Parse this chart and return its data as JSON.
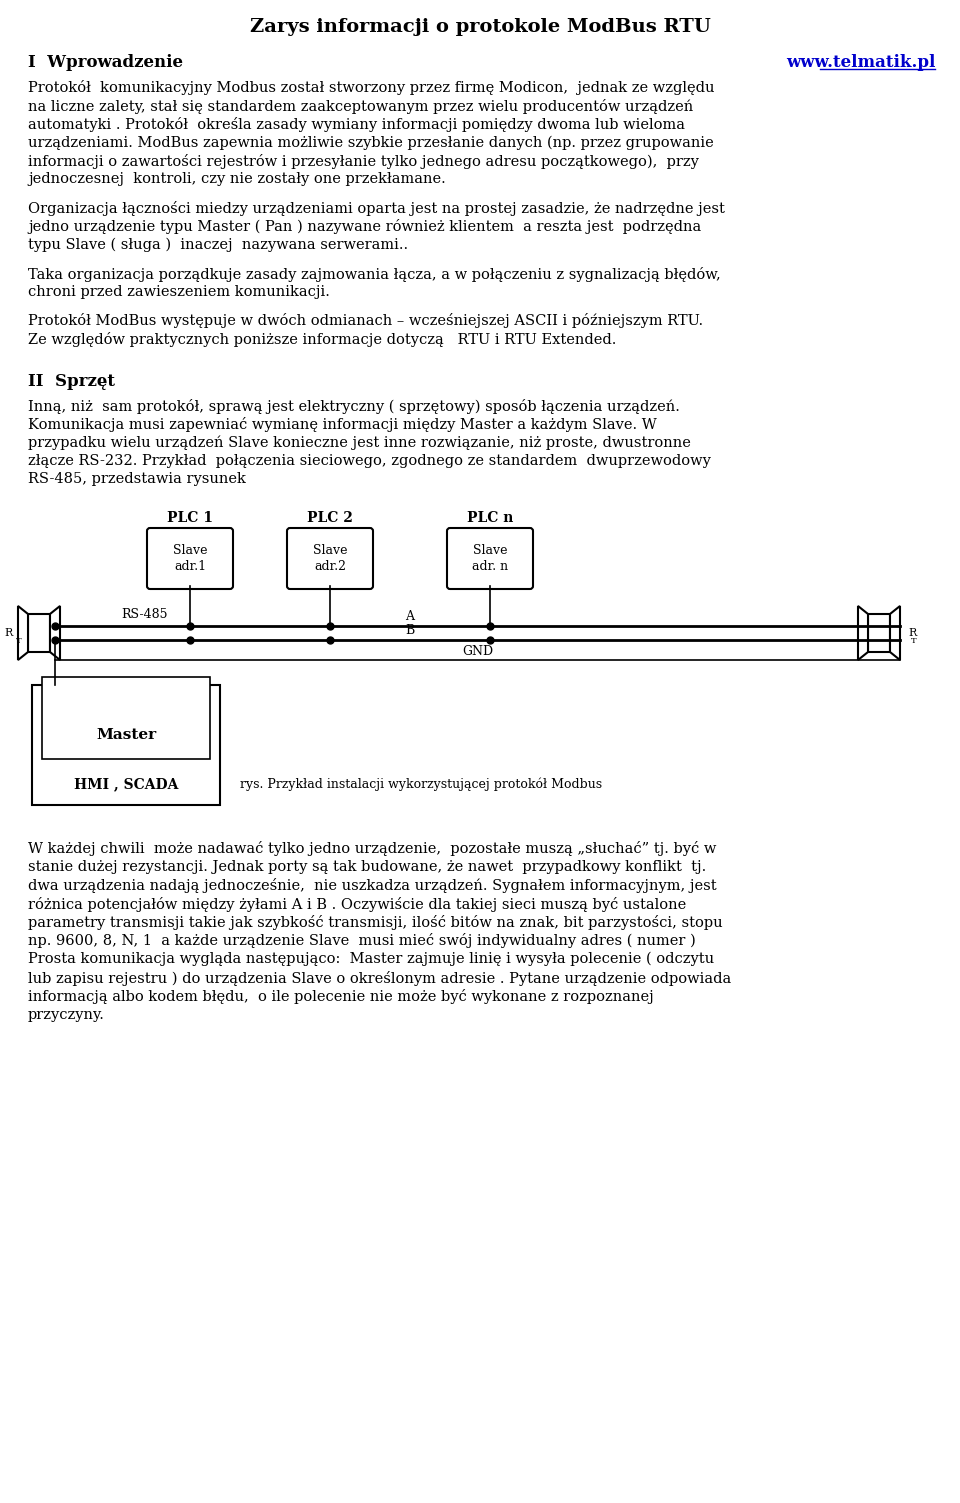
{
  "title": "Zarys informacji o protokole ModBus RTU",
  "section1": "I  Wprowadzenie",
  "url": "www.telmatik.pl",
  "para1_lines": [
    "Protokół  komunikacyjny Modbus został stworzony przez firmę Modicon,  jednak ze względu",
    "na liczne zalety, stał się standardem zaakceptowanym przez wielu producentów urządzeń",
    "automatyki . Protokół  określa zasady wymiany informacji pomiędzy dwoma lub wieloma",
    "urządzeniami. ModBus zapewnia możliwie szybkie przesłanie danych (np. przez grupowanie",
    "informacji o zawartości rejestrów i przesyłanie tylko jednego adresu początkowego),  przy",
    "jednoczesnej  kontroli, czy nie zostały one przekłamane."
  ],
  "para2_lines": [
    "Organizacja łączności miedzy urządzeniami oparta jest na prostej zasadzie, że nadrzędne jest",
    "jedno urządzenie typu Master ( Pan ) nazywane również klientem  a reszta jest  podrzędna",
    "typu Slave ( sługa )  inaczej  nazywana serwerami.."
  ],
  "para3_lines": [
    "Taka organizacja porządkuje zasady zajmowania łącza, a w połączeniu z sygnalizacją błędów,",
    "chroni przed zawieszeniem komunikacji."
  ],
  "para4_lines": [
    "Protokół ModBus występuje w dwóch odmianach – wcześniejszej ASCII i późniejszym RTU.",
    "Ze względów praktycznych poniższe informacje dotyczą   RTU i RTU Extended."
  ],
  "section2": "II  Sprzęt",
  "para5_lines": [
    "Inną, niż  sam protokół, sprawą jest elektryczny ( sprzętowy) sposób łączenia urządzeń.",
    "Komunikacja musi zapewniać wymianę informacji między Master a każdym Slave. W",
    "przypadku wielu urządzeń Slave konieczne jest inne rozwiązanie, niż proste, dwustronne",
    "złącze RS-232. Przykład  połączenia sieciowego, zgodnego ze standardem  dwuprzewodowy",
    "RS-485, przedstawia rysunek"
  ],
  "diagram_caption": "rys. Przykład instalacji wykorzystującej protokół Modbus",
  "para6_lines": [
    "W każdej chwili  może nadawać tylko jedno urządzenie,  pozostałe muszą „słuchać” tj. być w",
    "stanie dużej rezystancji. Jednak porty są tak budowane, że nawet  przypadkowy konflikt  tj.",
    "dwa urządzenia nadają jednocześnie,  nie uszkadza urządzeń. Sygnałem informacyjnym, jest",
    "różnica potencjałów między żyłami A i B . Oczywiście dla takiej sieci muszą być ustalone",
    "parametry transmisji takie jak szybkość transmisji, ilość bitów na znak, bit parzystości, stopu",
    "np. 9600, 8, N, 1  a każde urządzenie Slave  musi mieć swój indywidualny adres ( numer )",
    "Prosta komunikacja wygląda następująco:  Master zajmuje linię i wysyła polecenie ( odczytu",
    "lub zapisu rejestru ) do urządzenia Slave o określonym adresie . Pytane urządzenie odpowiada",
    "informacją albo kodem błędu,  o ile polecenie nie może być wykonane z rozpoznanej",
    "przyczyny."
  ],
  "bg_color": "#ffffff",
  "text_color": "#000000",
  "title_fontsize": 14,
  "section_fontsize": 12,
  "body_fontsize": 10.5,
  "url_color": "#0000cc"
}
